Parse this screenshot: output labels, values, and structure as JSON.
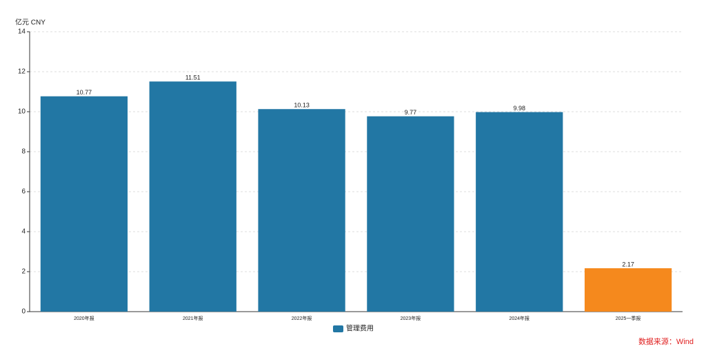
{
  "chart_data": {
    "type": "bar",
    "y_unit": "亿元  CNY",
    "categories": [
      "2020年报",
      "2021年报",
      "2022年报",
      "2023年报",
      "2024年报",
      "2025一季报"
    ],
    "series": [
      {
        "name": "管理费用",
        "color": "#2277a4",
        "values": [
          10.77,
          11.51,
          10.13,
          9.77,
          9.98,
          2.17
        ]
      }
    ],
    "bar_colors": [
      "#2277a4",
      "#2277a4",
      "#2277a4",
      "#2277a4",
      "#2277a4",
      "#f5891d"
    ],
    "ylim": [
      0,
      14
    ],
    "yticks": [
      0,
      2,
      4,
      6,
      8,
      10,
      12,
      14
    ],
    "grid": true,
    "source": "数据来源：Wind"
  }
}
